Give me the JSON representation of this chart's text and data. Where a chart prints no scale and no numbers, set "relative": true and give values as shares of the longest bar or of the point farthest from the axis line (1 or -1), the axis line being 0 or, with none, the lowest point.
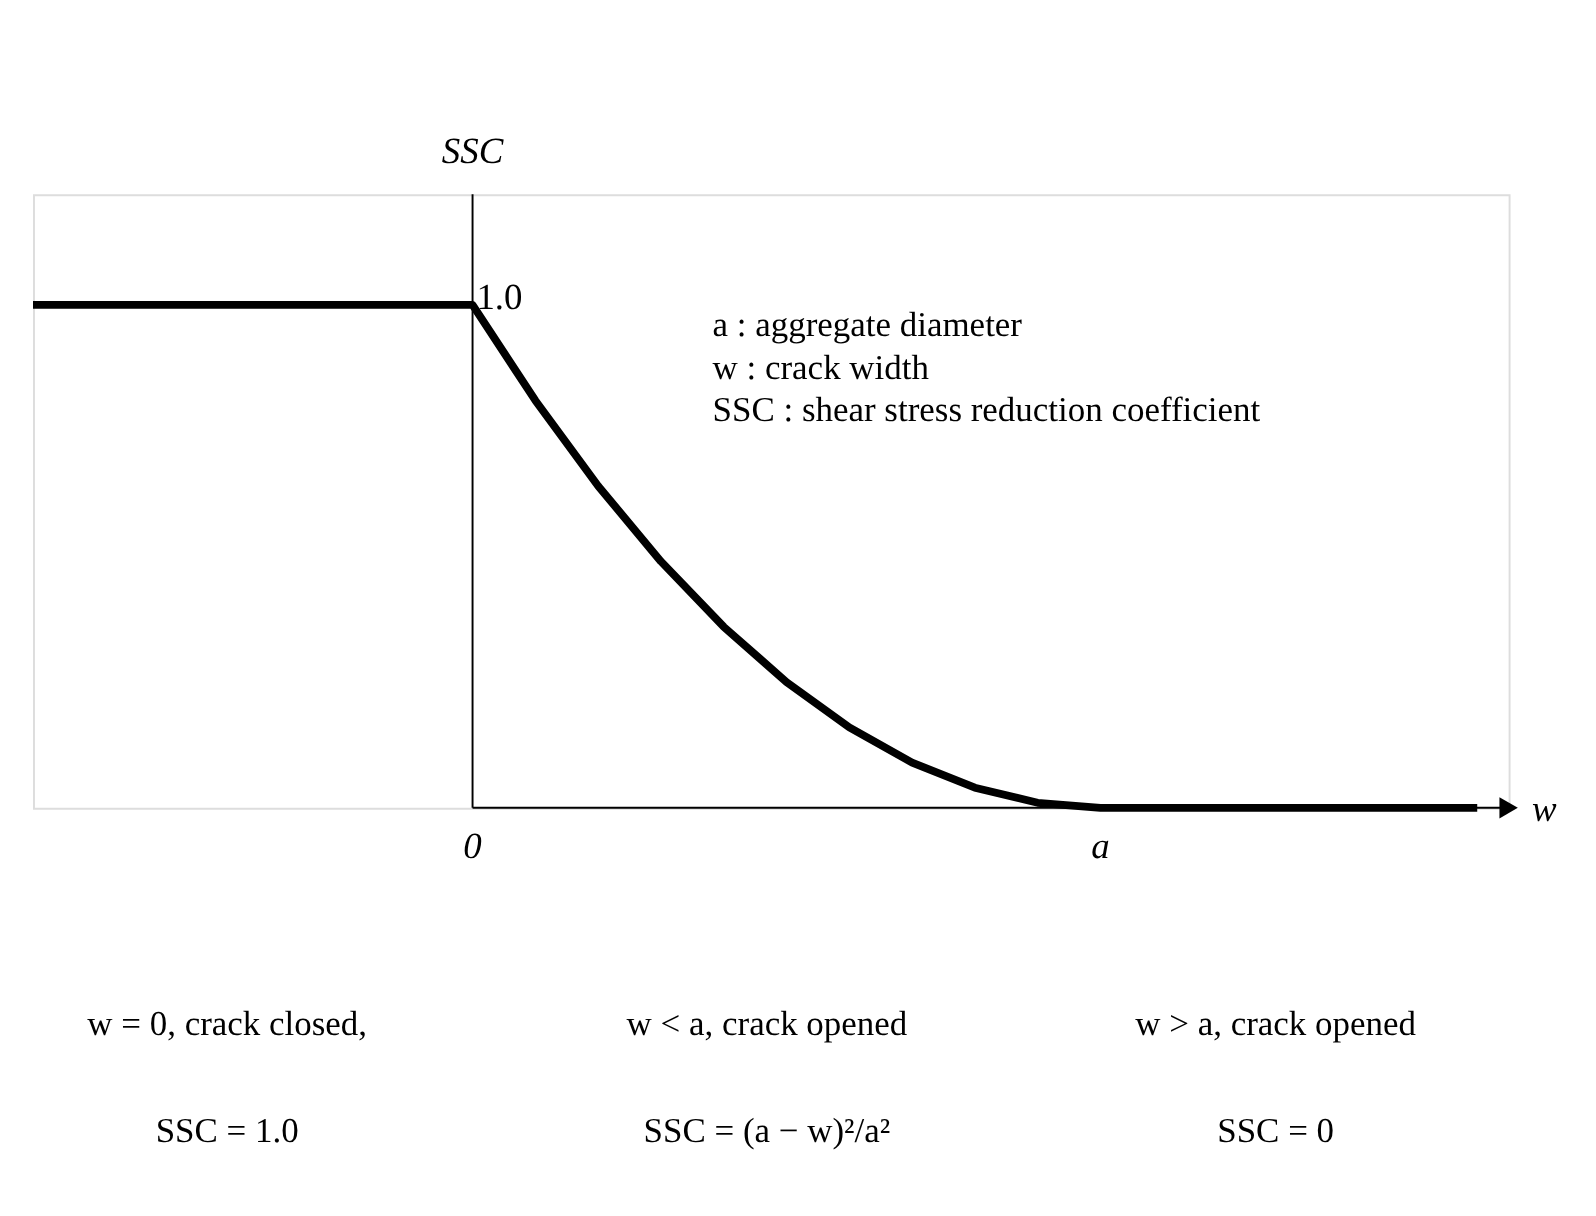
{
  "chart_data": {
    "type": "line",
    "relative": true,
    "xlabel": "w",
    "ylabel": "SSC",
    "categories": [
      null,
      null,
      null,
      null,
      null,
      null,
      null,
      "0",
      null,
      null,
      null,
      null,
      null,
      null,
      null,
      null,
      null,
      "a",
      null,
      null,
      null,
      null,
      null,
      null
    ],
    "marker": "none",
    "line_style": "solid",
    "series": [
      {
        "color": "#000000",
        "values": [
          1,
          1,
          1,
          1,
          1,
          1,
          1,
          1,
          0.81,
          0.64,
          0.49,
          0.36,
          0.25,
          0.16,
          0.09,
          0.04,
          0.01,
          0,
          0,
          0,
          0,
          0,
          0,
          0
        ]
      }
    ],
    "annotations": [
      "1.0",
      "a      : aggregate diameter",
      "w     : crack width",
      "SSC  : shear stress reduction coefficient",
      "w = 0, crack closed,",
      "w < a, crack opened",
      "w > a, crack opened",
      "SSC = 1.0",
      "SSC = (a − w)²/a²",
      "SSC = 0"
    ]
  }
}
